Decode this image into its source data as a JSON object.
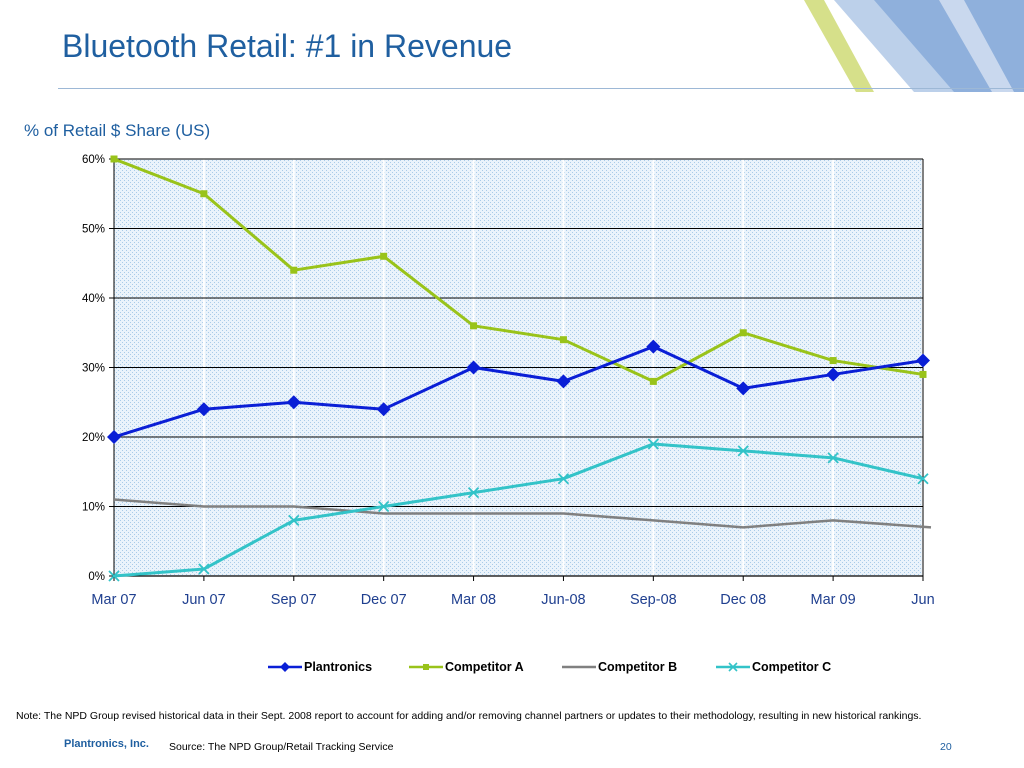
{
  "header": {
    "title": "Bluetooth Retail: #1 in Revenue"
  },
  "colors": {
    "title": "#1f5fa0",
    "plantronics": "#0a1fd6",
    "competitor_a": "#99c31a",
    "competitor_b": "#808080",
    "competitor_c": "#33c3c8"
  },
  "chart_data": {
    "type": "line",
    "title": "% of Retail $ Share (US)",
    "xlabel": "",
    "ylabel": "",
    "categories": [
      "Mar 07",
      "Jun 07",
      "Sep 07",
      "Dec 07",
      "Mar 08",
      "Jun-08",
      "Sep-08",
      "Dec 08",
      "Mar 09",
      "Jun"
    ],
    "y_ticks": [
      "0%",
      "10%",
      "20%",
      "30%",
      "40%",
      "50%",
      "60%"
    ],
    "ylim": [
      0,
      60
    ],
    "grid": "horizontal",
    "legend_position": "bottom",
    "series": [
      {
        "name": "Plantronics",
        "marker": "diamond",
        "values": [
          20,
          24,
          25,
          24,
          30,
          28,
          33,
          27,
          29,
          31
        ]
      },
      {
        "name": "Competitor A",
        "marker": "square",
        "values": [
          60,
          55,
          44,
          46,
          36,
          34,
          28,
          35,
          31,
          29
        ]
      },
      {
        "name": "Competitor B",
        "marker": "none",
        "values": [
          11,
          10,
          10,
          9,
          9,
          9,
          8,
          7,
          8,
          7
        ]
      },
      {
        "name": "Competitor C",
        "marker": "x",
        "values": [
          0,
          1,
          8,
          10,
          12,
          14,
          19,
          18,
          17,
          14
        ]
      }
    ]
  },
  "footer": {
    "note": "Note: The NPD Group revised  historical data in their Sept. 2008 report to account for adding and/or removing channel partners or updates to their methodology, resulting in new  historical rankings.",
    "company": "Plantronics, Inc.",
    "source": "Source:  The NPD Group/Retail Tracking Service",
    "page_number": "20"
  }
}
